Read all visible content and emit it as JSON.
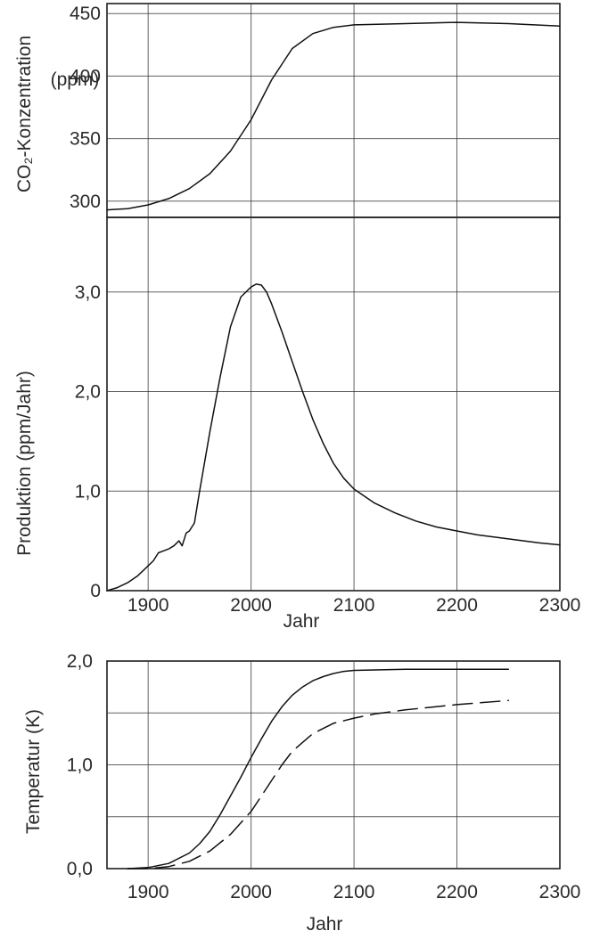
{
  "chart_data": [
    {
      "type": "line",
      "ylabel_line1": "CO₂-Konzentration",
      "ylabel_line2": "(ppm)",
      "xlim": [
        1860,
        2300
      ],
      "ylim": [
        287,
        458
      ],
      "xticks": [
        1900,
        2000,
        2100,
        2200,
        2300
      ],
      "yticks": [
        300,
        350,
        400,
        450
      ],
      "ytick_labels": [
        "300",
        "350",
        "400",
        "450"
      ],
      "grid": true,
      "series": [
        {
          "style": "solid",
          "x": [
            1860,
            1880,
            1900,
            1920,
            1940,
            1960,
            1980,
            2000,
            2020,
            2040,
            2060,
            2080,
            2100,
            2150,
            2200,
            2250,
            2300
          ],
          "y": [
            293,
            294,
            297,
            302,
            310,
            322,
            340,
            365,
            397,
            422,
            434,
            439,
            441,
            442,
            443,
            442,
            440
          ]
        }
      ]
    },
    {
      "type": "line",
      "ylabel": "Produktion (ppm/Jahr)",
      "xlabel": "Jahr",
      "xlim": [
        1860,
        2300
      ],
      "ylim": [
        0,
        3.75
      ],
      "xticks": [
        1900,
        2000,
        2100,
        2200,
        2300
      ],
      "xtick_labels": [
        "1900",
        "2000",
        "2100",
        "2200",
        "2300"
      ],
      "yticks": [
        0,
        1.0,
        2.0,
        3.0
      ],
      "ytick_labels": [
        "0",
        "1,0",
        "2,0",
        "3,0"
      ],
      "grid": true,
      "series": [
        {
          "style": "solid",
          "x": [
            1860,
            1870,
            1880,
            1890,
            1900,
            1905,
            1910,
            1915,
            1920,
            1925,
            1930,
            1933,
            1937,
            1940,
            1945,
            1950,
            1960,
            1970,
            1980,
            1990,
            2000,
            2005,
            2010,
            2015,
            2020,
            2030,
            2040,
            2050,
            2060,
            2070,
            2080,
            2090,
            2100,
            2120,
            2140,
            2160,
            2180,
            2200,
            2220,
            2250,
            2280,
            2300
          ],
          "y": [
            0,
            0.03,
            0.08,
            0.15,
            0.25,
            0.3,
            0.38,
            0.4,
            0.42,
            0.45,
            0.5,
            0.45,
            0.58,
            0.6,
            0.68,
            1.0,
            1.6,
            2.15,
            2.65,
            2.95,
            3.05,
            3.08,
            3.07,
            3.0,
            2.88,
            2.6,
            2.3,
            2.0,
            1.72,
            1.48,
            1.28,
            1.13,
            1.02,
            0.88,
            0.78,
            0.7,
            0.64,
            0.6,
            0.56,
            0.52,
            0.48,
            0.46
          ]
        }
      ]
    },
    {
      "type": "line",
      "ylabel": "Temperatur (K)",
      "xlabel": "Jahr",
      "xlim": [
        1860,
        2300
      ],
      "ylim": [
        0,
        2.0
      ],
      "xticks": [
        1900,
        2000,
        2100,
        2200,
        2300
      ],
      "xtick_labels": [
        "1900",
        "2000",
        "2100",
        "2200",
        "2300"
      ],
      "yticks": [
        0,
        1.0,
        2.0
      ],
      "ytick_labels": [
        "0,0",
        "1,0",
        "2,0"
      ],
      "grid": true,
      "series": [
        {
          "style": "solid",
          "x": [
            1880,
            1900,
            1920,
            1940,
            1950,
            1960,
            1970,
            1980,
            1990,
            2000,
            2010,
            2020,
            2030,
            2040,
            2050,
            2060,
            2070,
            2080,
            2090,
            2100,
            2150,
            2200,
            2250
          ],
          "y": [
            0,
            0.01,
            0.05,
            0.15,
            0.24,
            0.36,
            0.52,
            0.7,
            0.88,
            1.07,
            1.25,
            1.42,
            1.56,
            1.67,
            1.75,
            1.81,
            1.85,
            1.88,
            1.9,
            1.91,
            1.92,
            1.92,
            1.92
          ]
        },
        {
          "style": "dashed",
          "x": [
            1880,
            1900,
            1920,
            1940,
            1960,
            1980,
            2000,
            2010,
            2020,
            2030,
            2040,
            2060,
            2080,
            2100,
            2120,
            2150,
            2200,
            2250
          ],
          "y": [
            0,
            0.0,
            0.02,
            0.07,
            0.17,
            0.33,
            0.55,
            0.7,
            0.85,
            1.0,
            1.13,
            1.3,
            1.4,
            1.45,
            1.49,
            1.53,
            1.58,
            1.62
          ]
        }
      ]
    }
  ]
}
